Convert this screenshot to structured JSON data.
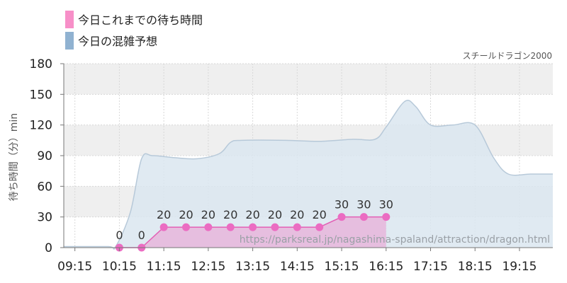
{
  "legend": {
    "today_label": "今日これまでの待ち時間",
    "forecast_label": "今日の混雑予想"
  },
  "colors": {
    "today_swatch": "#f78fc8",
    "forecast_swatch": "#90b2d1",
    "today_fill": "#e6b6dc",
    "today_line": "#e35fb5",
    "today_point": "#eb6cc2",
    "forecast_fill": "#dae6f0",
    "forecast_line": "#b7c9d9",
    "band": "#efefef"
  },
  "chart_data": {
    "type": "area",
    "title": "スチールドラゴン2000",
    "ylabel": "待ち時間（分）min",
    "watermark": "https://parksreal.jp/nagashima-spaland/attraction/dragon.html",
    "ylim": [
      0,
      180
    ],
    "yticks": [
      "0",
      "30",
      "60",
      "90",
      "120",
      "150",
      "180"
    ],
    "xlim": [
      "09:00",
      "20:00"
    ],
    "xticks": [
      "09:15",
      "10:15",
      "11:15",
      "12:15",
      "13:15",
      "14:15",
      "15:15",
      "16:15",
      "17:15",
      "18:15",
      "19:15"
    ],
    "grid": true,
    "series": [
      {
        "name": "今日の混雑予想",
        "x": [
          "09:00",
          "10:00",
          "10:10",
          "10:30",
          "10:45",
          "11:00",
          "11:30",
          "12:00",
          "12:30",
          "12:45",
          "13:00",
          "14:00",
          "14:45",
          "15:30",
          "16:00",
          "16:15",
          "16:40",
          "16:55",
          "17:15",
          "17:45",
          "18:15",
          "18:40",
          "19:00",
          "19:30",
          "20:00"
        ],
        "values": [
          1,
          1,
          1,
          35,
          87,
          90,
          88,
          87,
          92,
          103,
          105,
          105,
          104,
          106,
          106,
          118,
          143,
          138,
          120,
          120,
          120,
          88,
          72,
          72,
          72
        ]
      },
      {
        "name": "今日これまでの待ち時間",
        "x": [
          "10:15",
          "10:45",
          "11:15",
          "11:45",
          "12:15",
          "12:45",
          "13:15",
          "13:45",
          "14:15",
          "14:45",
          "15:15",
          "15:45",
          "16:15"
        ],
        "values": [
          0,
          0,
          20,
          20,
          20,
          20,
          20,
          20,
          20,
          20,
          30,
          30,
          30
        ],
        "labels": [
          "0",
          "0",
          "20",
          "20",
          "20",
          "20",
          "20",
          "20",
          "20",
          "20",
          "30",
          "30",
          "30"
        ]
      }
    ]
  }
}
